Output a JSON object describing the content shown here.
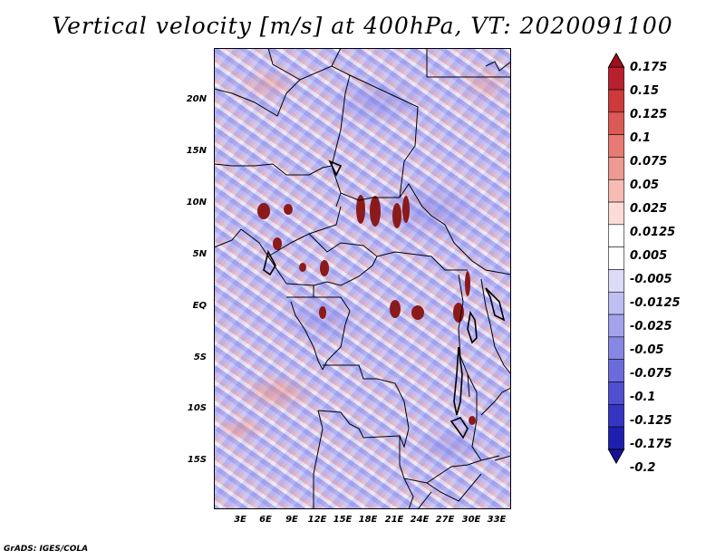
{
  "title": "Vertical velocity [m/s] at 400hPa, VT: 2020091100",
  "map": {
    "lat_labels": [
      "20N",
      "15N",
      "10N",
      "5N",
      "EQ",
      "5S",
      "10S",
      "15S"
    ],
    "lon_labels": [
      "3E",
      "6E",
      "9E",
      "12E",
      "15E",
      "18E",
      "21E",
      "24E",
      "27E",
      "30E",
      "33E"
    ]
  },
  "colorbar": {
    "labels": [
      "0.175",
      "0.15",
      "0.125",
      "0.1",
      "0.075",
      "0.05",
      "0.025",
      "0.0125",
      "0.005",
      "-0.005",
      "-0.0125",
      "-0.025",
      "-0.05",
      "-0.075",
      "-0.1",
      "-0.125",
      "-0.175",
      "-0.2"
    ],
    "colors": [
      "#a00f1e",
      "#b8212c",
      "#cc3a3a",
      "#db5a55",
      "#e77a72",
      "#ef9a90",
      "#f6bcb4",
      "#fbdcd6",
      "#ffffff",
      "#ffffff",
      "#dcdcf8",
      "#bfbff2",
      "#a3a3ec",
      "#8787e4",
      "#6b6bdb",
      "#4f4fd0",
      "#3535c2",
      "#1f1faf",
      "#1a0f9a"
    ]
  },
  "footer": "GrADS: IGES/COLA"
}
